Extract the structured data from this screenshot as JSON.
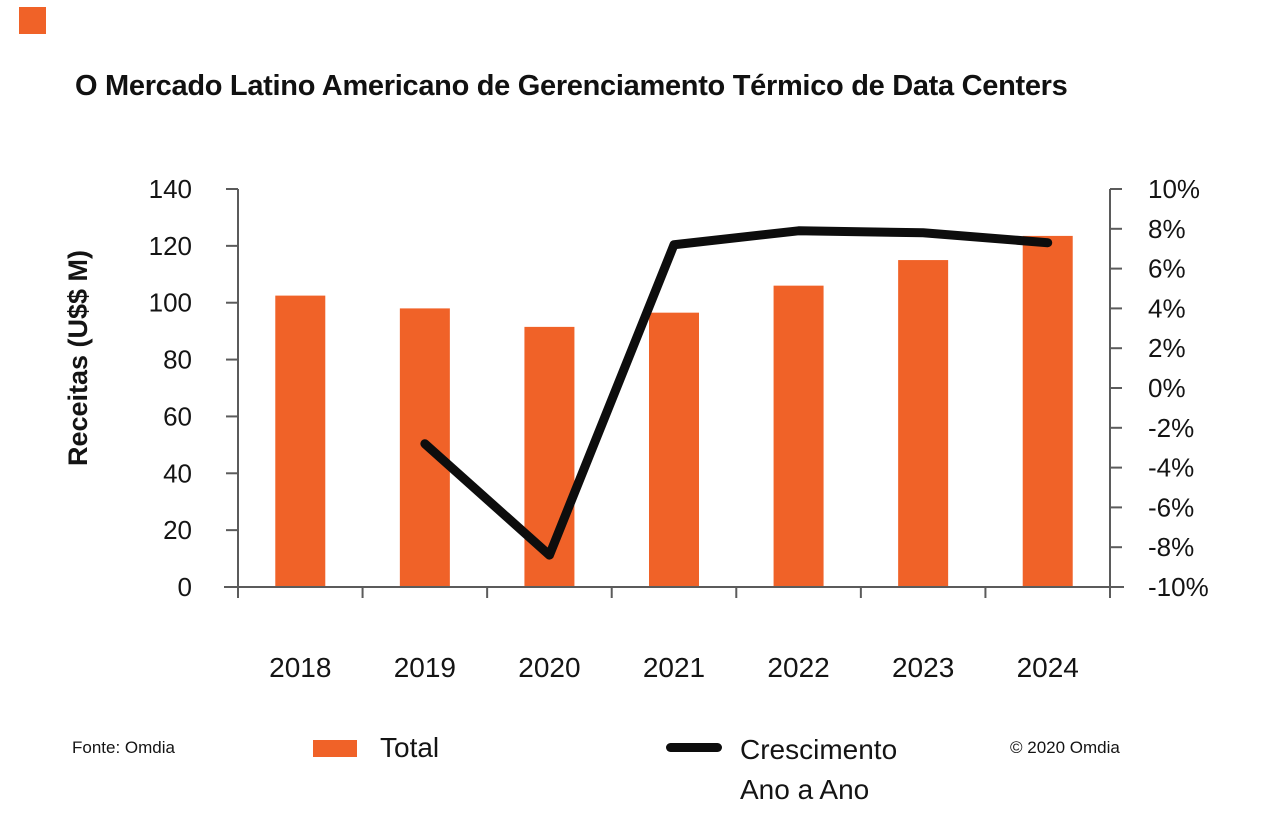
{
  "header": {
    "title": "O Mercado Latino Americano de Gerenciamento Térmico de Data Centers"
  },
  "brand": {
    "square_color": "#F06228"
  },
  "footer": {
    "source": "Fonte: Omdia",
    "copyright": "© 2020 Omdia"
  },
  "legend": {
    "position": "bottom",
    "total": {
      "label": "Total",
      "color": "#F06228",
      "swatch": "bar"
    },
    "growth": {
      "label": "Crescimento Ano a Ano",
      "label_lines": [
        "Crescimento",
        "Ano a Ano"
      ],
      "color": "#0D0D0D",
      "swatch": "line"
    }
  },
  "chart_data": {
    "type": "bar",
    "combo": "bar+line",
    "title": "O Mercado Latino Americano de Gerenciamento Térmico de Data Centers",
    "categories": [
      "2018",
      "2019",
      "2020",
      "2021",
      "2022",
      "2023",
      "2024"
    ],
    "series": [
      {
        "name": "Total",
        "chart_type": "bar",
        "y_axis": "left",
        "color": "#F06228",
        "values": [
          102.5,
          98,
          91.5,
          96.5,
          106,
          115,
          123.5
        ]
      },
      {
        "name": "Crescimento Ano a Ano",
        "chart_type": "line",
        "y_axis": "right",
        "color": "#0D0D0D",
        "values": [
          null,
          -2.8,
          -8.4,
          7.2,
          7.9,
          7.8,
          7.3
        ]
      }
    ],
    "left_axis": {
      "label": "Receitas (U$$ M)",
      "min": 0,
      "max": 140,
      "step": 20,
      "tick_labels": [
        "140",
        "120",
        "100",
        "80",
        "60",
        "40",
        "20",
        "0"
      ]
    },
    "right_axis": {
      "label": "",
      "min": -10,
      "max": 10,
      "step": 2,
      "tick_labels": [
        "10%",
        "8%",
        "6%",
        "4%",
        "2%",
        "0%",
        "-2%",
        "-4%",
        "-6%",
        "-8%",
        "-10%"
      ]
    },
    "grid": false,
    "axis_color": "#5B5B5B",
    "legend_position": "bottom"
  }
}
